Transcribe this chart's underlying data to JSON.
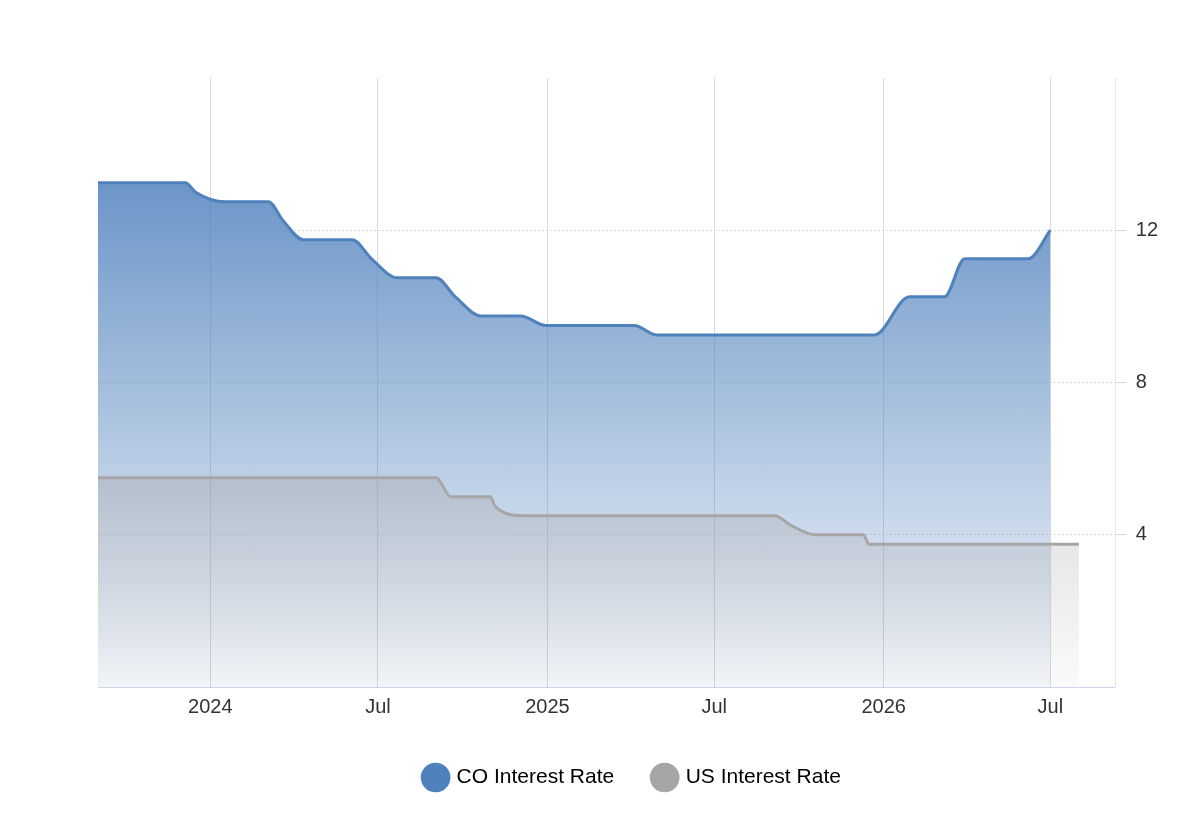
{
  "chart_data": {
    "type": "area",
    "xlim": [
      "2023-09-01",
      "2026-09-10"
    ],
    "xticks": [
      {
        "value": "2024-01-01",
        "label": "2024"
      },
      {
        "value": "2024-07-01",
        "label": "Jul"
      },
      {
        "value": "2025-01-01",
        "label": "2025"
      },
      {
        "value": "2025-07-01",
        "label": "Jul"
      },
      {
        "value": "2026-01-01",
        "label": "2026"
      },
      {
        "value": "2026-07-01",
        "label": "Jul"
      }
    ],
    "ylim": [
      0,
      16
    ],
    "yticks": [
      4,
      8,
      12
    ],
    "grid": true,
    "legend": "bottom",
    "series": [
      {
        "name": "CO Interest Rate",
        "color": "#4f81bd",
        "x": [
          "2023-09-01",
          "2023-12-05",
          "2023-12-16",
          "2024-01-17",
          "2024-03-04",
          "2024-03-20",
          "2024-04-11",
          "2024-06-03",
          "2024-06-24",
          "2024-07-22",
          "2024-09-02",
          "2024-09-23",
          "2024-10-21",
          "2024-12-03",
          "2024-12-30",
          "2025-04-05",
          "2025-04-30",
          "2025-12-22",
          "2026-01-29",
          "2026-03-08",
          "2026-03-30",
          "2026-06-07",
          "2026-07-01"
        ],
        "values": [
          13.25,
          13.25,
          13.0,
          12.75,
          12.75,
          12.25,
          11.75,
          11.75,
          11.25,
          10.75,
          10.75,
          10.25,
          9.75,
          9.75,
          9.5,
          9.5,
          9.25,
          9.25,
          10.25,
          10.25,
          11.25,
          11.25,
          12.0
        ]
      },
      {
        "name": "US Interest Rate",
        "color": "#a6a6a6",
        "x": [
          "2023-09-01",
          "2024-09-02",
          "2024-09-18",
          "2024-10-31",
          "2024-11-05",
          "2024-12-07",
          "2025-09-05",
          "2025-09-22",
          "2025-10-19",
          "2025-12-10",
          "2025-12-16",
          "2026-08-01"
        ],
        "values": [
          5.5,
          5.5,
          5.0,
          5.0,
          4.75,
          4.5,
          4.5,
          4.25,
          4.0,
          4.0,
          3.75,
          3.75
        ]
      }
    ]
  }
}
